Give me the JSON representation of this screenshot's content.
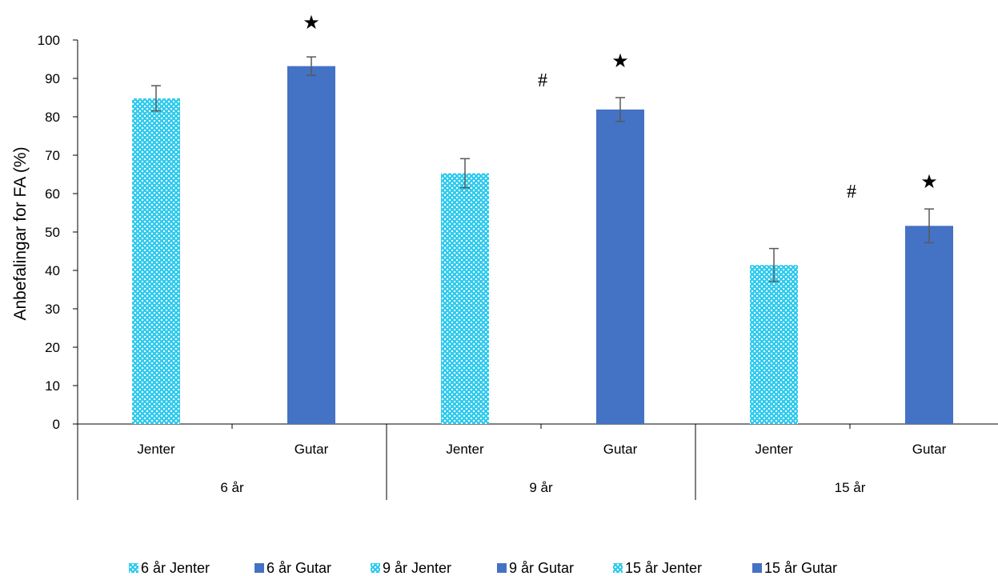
{
  "chart_data": {
    "type": "bar",
    "ylabel": "Anbefalingar for FA (%)",
    "xlabel": "",
    "ylim": [
      0,
      100
    ],
    "yticks": [
      0,
      10,
      20,
      30,
      40,
      50,
      60,
      70,
      80,
      90,
      100
    ],
    "grid": false,
    "legend_position": "bottom",
    "groups": [
      {
        "label": "6 år",
        "categories": [
          "Jenter",
          "Gutar"
        ]
      },
      {
        "label": "9 år",
        "categories": [
          "Jenter",
          "Gutar"
        ]
      },
      {
        "label": "15 år",
        "categories": [
          "Jenter",
          "Gutar"
        ]
      }
    ],
    "series": [
      {
        "name": "6 år Jenter",
        "group": 0,
        "category": 0,
        "value": 84.8,
        "error": 3.3,
        "style": "pattern",
        "color": "#33CCEE"
      },
      {
        "name": "6 år Gutar",
        "group": 0,
        "category": 1,
        "value": 93.2,
        "error": 2.4,
        "style": "solid",
        "color": "#4472C4"
      },
      {
        "name": "9 år Jenter",
        "group": 1,
        "category": 0,
        "value": 65.3,
        "error": 3.8,
        "style": "pattern",
        "color": "#33CCEE"
      },
      {
        "name": "9 år Gutar",
        "group": 1,
        "category": 1,
        "value": 81.9,
        "error": 3.1,
        "style": "solid",
        "color": "#4472C4"
      },
      {
        "name": "15 år Jenter",
        "group": 2,
        "category": 0,
        "value": 41.4,
        "error": 4.3,
        "style": "pattern",
        "color": "#33CCEE"
      },
      {
        "name": "15 år Gutar",
        "group": 2,
        "category": 1,
        "value": 51.6,
        "error": 4.4,
        "style": "solid",
        "color": "#4472C4"
      }
    ],
    "annotations": [
      {
        "text": "★",
        "group": 0,
        "category": 1,
        "y": 105
      },
      {
        "text": "#",
        "group": 1,
        "category": 0.5,
        "y": 90
      },
      {
        "text": "★",
        "group": 1,
        "category": 1,
        "y": 95
      },
      {
        "text": "#",
        "group": 2,
        "category": 0.5,
        "y": 61
      },
      {
        "text": "★",
        "group": 2,
        "category": 1,
        "y": 63.5
      }
    ]
  }
}
